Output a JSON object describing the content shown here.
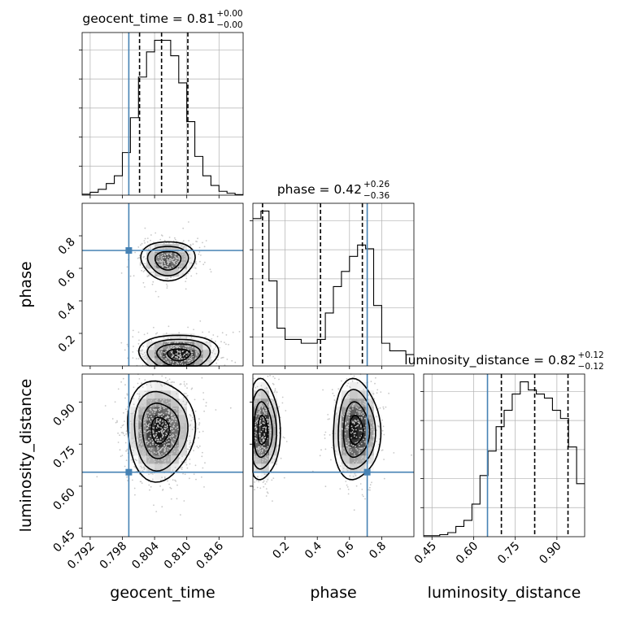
{
  "colors": {
    "truth": "#4682b4",
    "hist": "#000000",
    "grid": "#b0b0b0",
    "points": "#c8c8c8"
  },
  "chart_data": {
    "type": "corner",
    "parameters": [
      {
        "name": "geocent_time",
        "xlabel": "geocent_time",
        "title_main": "geocent_time = 0.81",
        "title_plus": "+0.00",
        "title_minus": "−0.00",
        "range": [
          0.7905,
          0.8205
        ],
        "ticks": [
          0.792,
          0.798,
          0.804,
          0.81,
          0.816
        ],
        "tick_labels": [
          "0.792",
          "0.798",
          "0.804",
          "0.810",
          "0.816"
        ],
        "truth": 0.7992,
        "quantiles": [
          0.8012,
          0.8053,
          0.8102
        ],
        "hist_bin_edges": [
          0.7905,
          0.792,
          0.7935,
          0.795,
          0.7965,
          0.798,
          0.7995,
          0.801,
          0.8025,
          0.804,
          0.8055,
          0.807,
          0.8085,
          0.81,
          0.8115,
          0.813,
          0.8145,
          0.816,
          0.8175,
          0.819,
          0.8205
        ],
        "hist_counts": [
          0.5,
          1.5,
          3,
          6,
          10,
          22,
          40,
          61,
          74,
          80,
          80,
          72,
          58,
          38,
          20,
          10,
          5,
          2,
          1,
          0.3
        ]
      },
      {
        "name": "phase",
        "xlabel": "phase",
        "ylabel": "phase",
        "title_main": "phase = 0.42",
        "title_plus": "+0.26",
        "title_minus": "−0.36",
        "range": [
          0.0,
          1.0
        ],
        "ticks": [
          0.2,
          0.4,
          0.6,
          0.8
        ],
        "tick_labels": [
          "0.2",
          "0.4",
          "0.6",
          "0.8"
        ],
        "y_ticks": [
          0.2,
          0.4,
          0.6,
          0.8
        ],
        "y_tick_labels": [
          "0.2",
          "0.4",
          "0.6",
          "0.8"
        ],
        "truth": 0.71,
        "quantiles": [
          0.06,
          0.42,
          0.68
        ],
        "hist_bin_edges": [
          0.0,
          0.05,
          0.1,
          0.15,
          0.2,
          0.25,
          0.3,
          0.35,
          0.4,
          0.45,
          0.5,
          0.55,
          0.6,
          0.65,
          0.7,
          0.75,
          0.8,
          0.85,
          0.9,
          0.95,
          1.0
        ],
        "hist_counts": [
          78,
          82,
          45,
          20,
          14,
          14,
          12,
          12,
          14,
          28,
          42,
          50,
          58,
          64,
          62,
          32,
          12,
          8,
          8,
          6
        ]
      },
      {
        "name": "luminosity_distance",
        "xlabel": "luminosity_distance",
        "ylabel": "luminosity_distance",
        "title_main": "luminosity_distance = 0.82",
        "title_plus": "+0.12",
        "title_minus": "−0.12",
        "range": [
          0.42,
          1.0
        ],
        "ticks": [
          0.45,
          0.6,
          0.75,
          0.9
        ],
        "tick_labels": [
          "0.45",
          "0.60",
          "0.75",
          "0.90"
        ],
        "y_ticks": [
          0.45,
          0.6,
          0.75,
          0.9
        ],
        "y_tick_labels": [
          "0.45",
          "0.60",
          "0.75",
          "0.90"
        ],
        "truth": 0.65,
        "quantiles": [
          0.7,
          0.82,
          0.94
        ],
        "hist_bin_edges": [
          0.42,
          0.449,
          0.478,
          0.507,
          0.536,
          0.565,
          0.594,
          0.623,
          0.652,
          0.681,
          0.71,
          0.739,
          0.768,
          0.797,
          0.826,
          0.855,
          0.884,
          0.913,
          0.942,
          0.971,
          1.0
        ],
        "hist_counts": [
          0.5,
          0.5,
          1,
          2,
          5,
          8,
          16,
          30,
          42,
          54,
          62,
          70,
          76,
          72,
          70,
          68,
          62,
          58,
          44,
          26
        ]
      }
    ],
    "pairs": [
      {
        "x": "geocent_time",
        "y": "phase",
        "truth": [
          0.7992,
          0.71
        ],
        "modes": [
          {
            "x": 0.8065,
            "y": 0.65,
            "sx": 0.0025,
            "sy": 0.06,
            "w": 0.45
          },
          {
            "x": 0.8085,
            "y": 0.07,
            "sx": 0.0035,
            "sy": 0.06,
            "w": 0.55
          }
        ]
      },
      {
        "x": "geocent_time",
        "y": "luminosity_distance",
        "truth": [
          0.7992,
          0.65
        ],
        "modes": [
          {
            "x": 0.805,
            "y": 0.8,
            "sx": 0.003,
            "sy": 0.085,
            "w": 1.0
          }
        ]
      },
      {
        "x": "phase",
        "y": "luminosity_distance",
        "truth": [
          0.71,
          0.65
        ],
        "modes": [
          {
            "x": 0.06,
            "y": 0.8,
            "sx": 0.05,
            "sy": 0.085,
            "w": 0.5
          },
          {
            "x": 0.64,
            "y": 0.8,
            "sx": 0.07,
            "sy": 0.085,
            "w": 0.5
          }
        ]
      }
    ],
    "grid": true
  }
}
